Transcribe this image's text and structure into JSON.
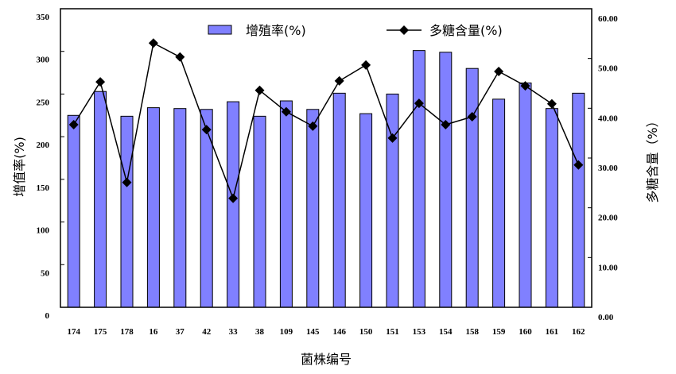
{
  "chart_data": {
    "type": "bar+line",
    "xlabel": "菌株编号",
    "ylabel": "增值率(%)",
    "y2label": "多糖含量（%）",
    "ylim": [
      0,
      350
    ],
    "y2lim": [
      0,
      60
    ],
    "yticks": [
      "0",
      "50",
      "100",
      "150",
      "200",
      "250",
      "300",
      "350"
    ],
    "y2ticks": [
      "0.00",
      "10.00",
      "20.00",
      "30.00",
      "40.00",
      "50.00",
      "60.00"
    ],
    "categories": [
      "174",
      "175",
      "178",
      "16",
      "37",
      "42",
      "33",
      "38",
      "109",
      "145",
      "146",
      "150",
      "151",
      "153",
      "154",
      "158",
      "159",
      "160",
      "161",
      "162"
    ],
    "series": [
      {
        "name": "增殖率(%)",
        "type": "bar",
        "axis": "left",
        "color": "#8080ff",
        "values": [
          225,
          253,
          224,
          234,
          233,
          232,
          241,
          224,
          242,
          232,
          251,
          227,
          250,
          301,
          299,
          280,
          244,
          263,
          233,
          251
        ]
      },
      {
        "name": "多糖含量(%)",
        "type": "line",
        "axis": "right",
        "color": "#000000",
        "marker": "diamond",
        "values": [
          36.7,
          45.3,
          25.1,
          53.1,
          50.3,
          35.7,
          21.9,
          43.6,
          39.3,
          36.4,
          45.5,
          48.7,
          34.0,
          41.0,
          36.7,
          38.3,
          47.4,
          44.5,
          40.9,
          28.6
        ]
      }
    ],
    "legend": "top",
    "grid": false
  }
}
